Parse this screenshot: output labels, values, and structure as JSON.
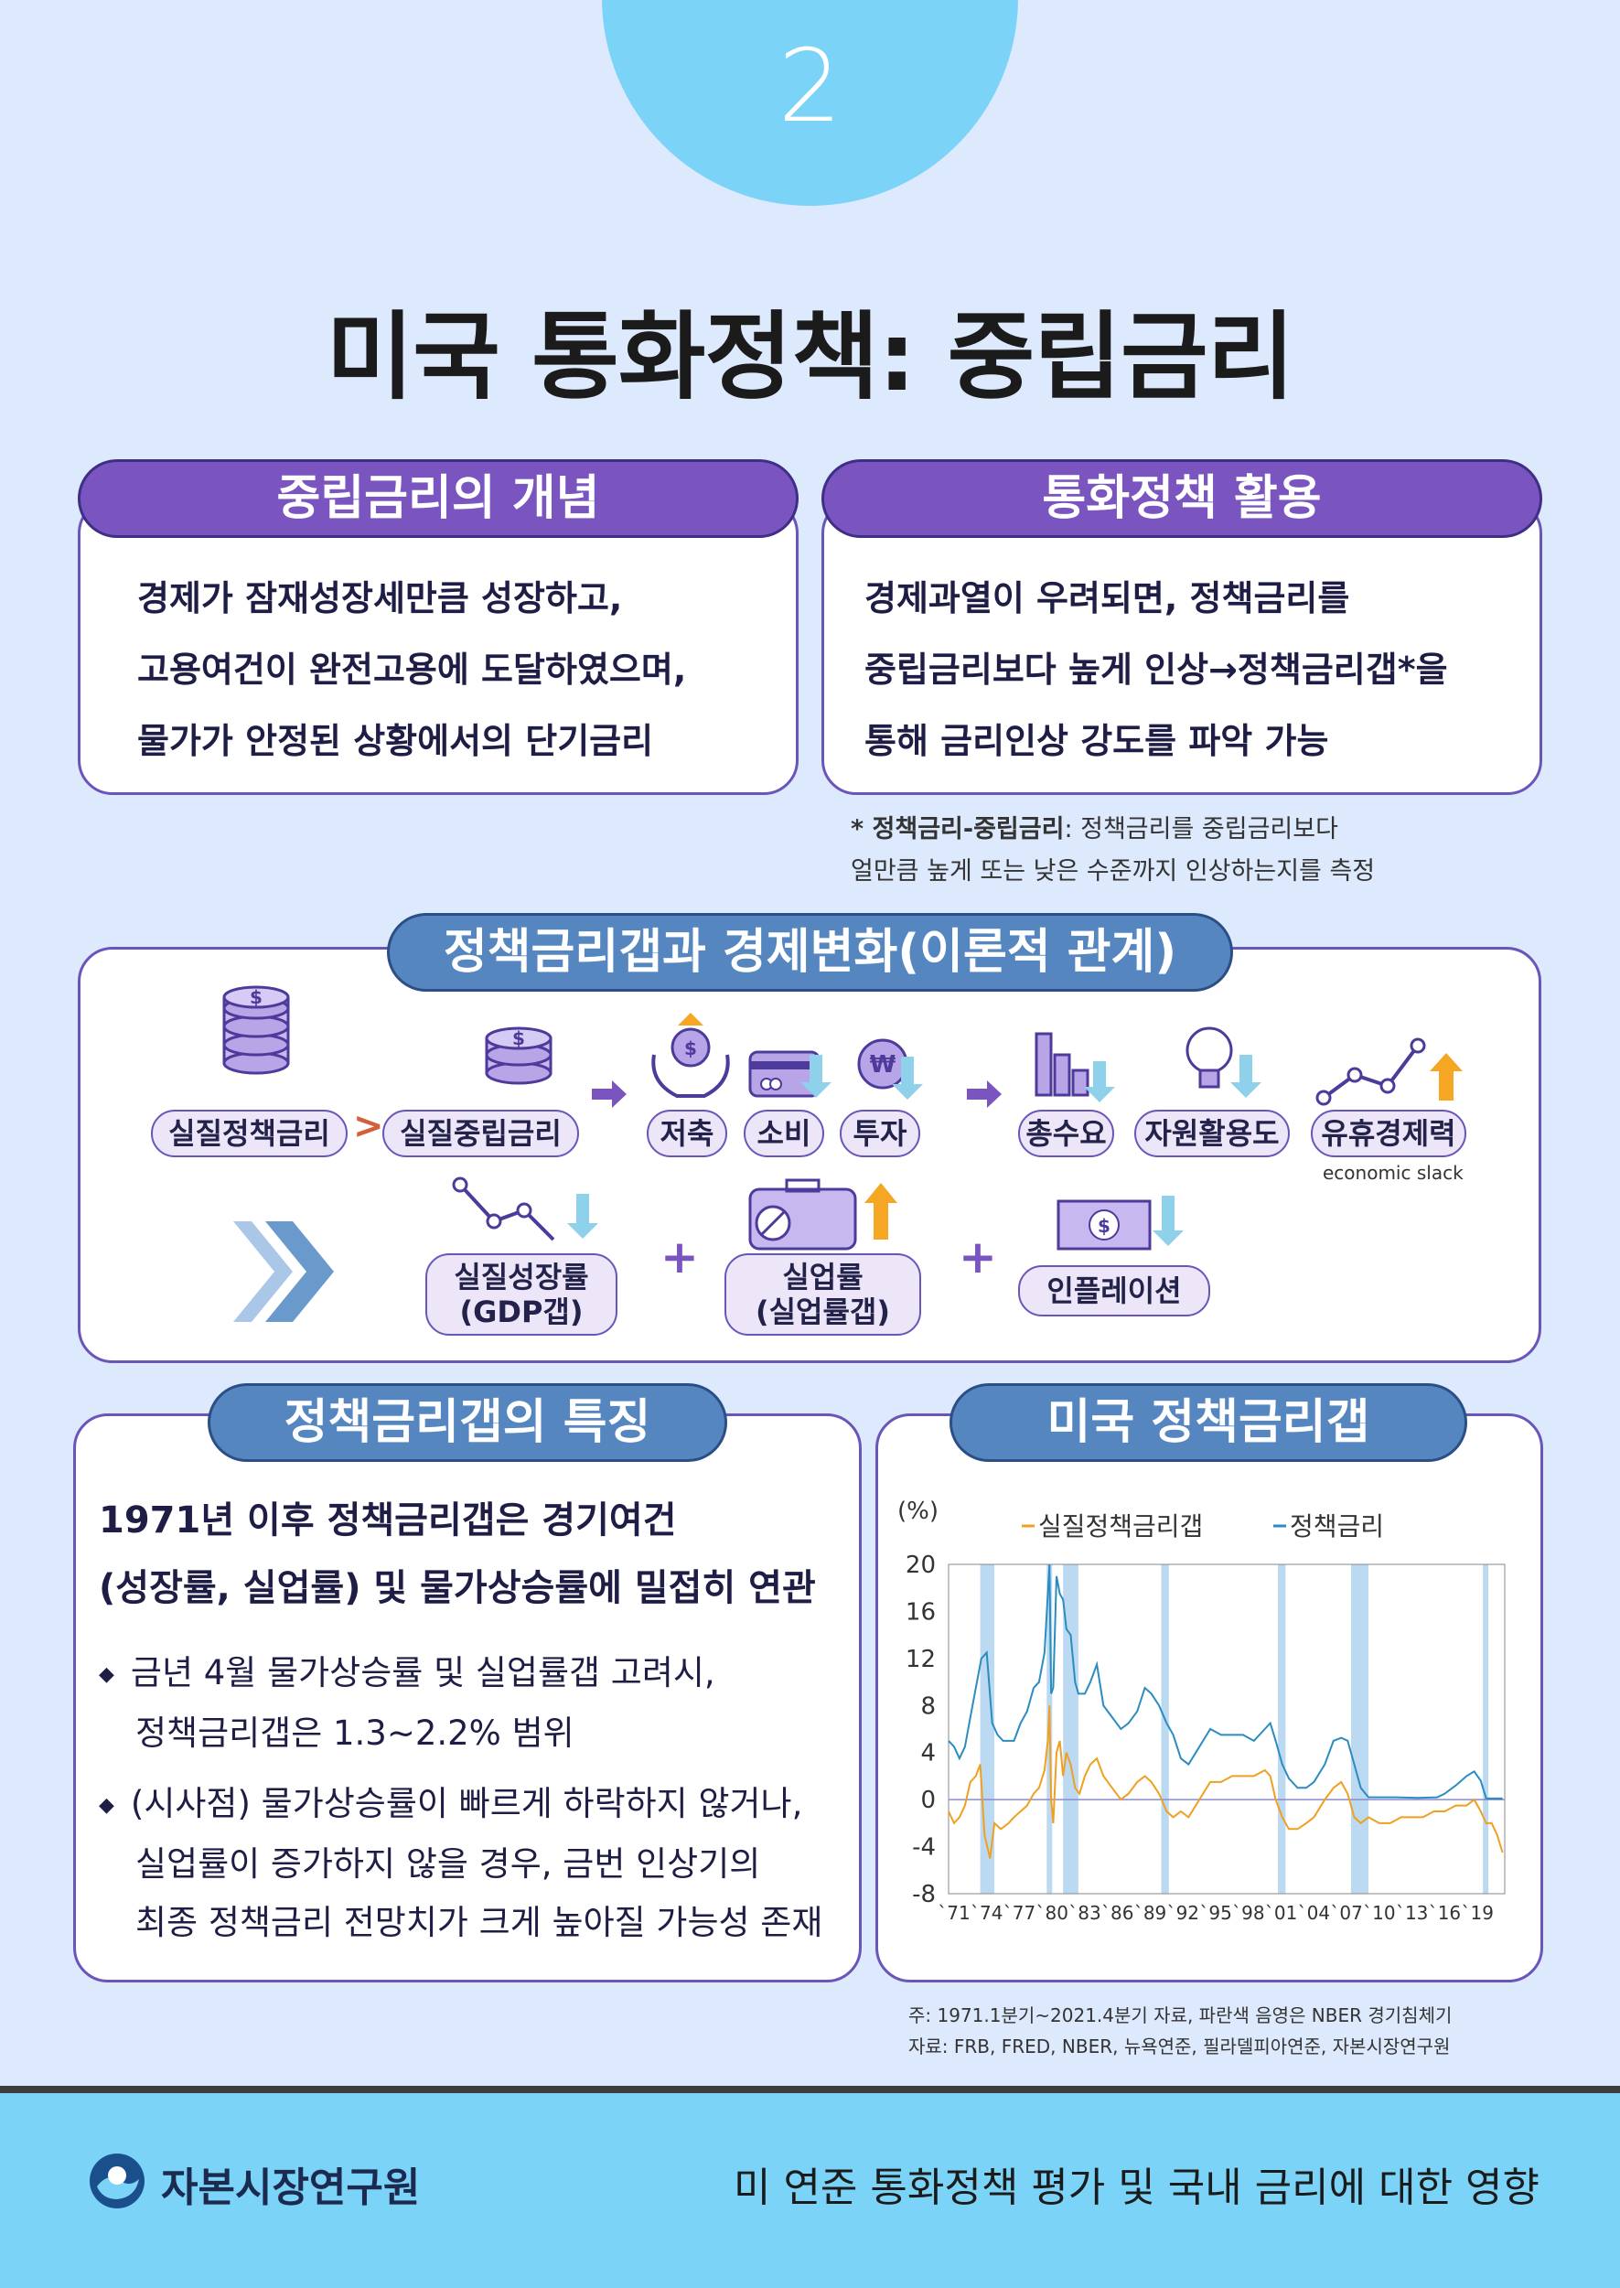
{
  "page_number": "2",
  "title": "미국 통화정책: 중립금리",
  "concept": {
    "header": "중립금리의 개념",
    "lines": [
      "경제가 잠재성장세만큼 성장하고,",
      "고용여건이 완전고용에 도달하였으며,",
      "물가가 안정된 상황에서의 단기금리"
    ]
  },
  "usage": {
    "header": "통화정책 활용",
    "lines": [
      "경제과열이 우려되면, 정책금리를",
      "중립금리보다 높게 인상→정책금리갭*을",
      "통해 금리인상 강도를 파악 가능"
    ]
  },
  "footnote": {
    "bold": "* 정책금리-중립금리",
    "rest": ": 정책금리를 중립금리보다",
    "line2": "얼만큼 높게 또는 낮은 수준까지 인상하는지를 측정"
  },
  "theory": {
    "header": "정책금리갭과 경제변화(이론적 관계)",
    "real_policy_rate": "실질정책금리",
    "real_neutral_rate": "실질중립금리",
    "savings": "저축",
    "consumption": "소비",
    "investment": "투자",
    "aggregate_demand": "총수요",
    "resource_utilization": "자원활용도",
    "economic_slack": "유휴경제력",
    "economic_slack_en": "economic slack",
    "growth_line1": "실질성장률",
    "growth_line2": "(GDP갭)",
    "unemp_line1": "실업률",
    "unemp_line2": "(실업률갭)",
    "inflation": "인플레이션",
    "gt": ">",
    "arrow": "➜",
    "plus": "+",
    "dollar": "$",
    "won": "₩"
  },
  "features": {
    "header": "정책금리갭의 특징",
    "lead1": "1971년 이후 정책금리갭은 경기여건",
    "lead2": "(성장률, 실업률) 및 물가상승률에 밀접히 연관",
    "bullet1_line1": "금년 4월 물가상승률 및 실업률갭 고려시,",
    "bullet1_line2": "정책금리갭은 1.3~2.2% 범위",
    "bullet2_line1": "(시사점) 물가상승률이 빠르게 하락하지 않거나,",
    "bullet2_line2": "실업률이 증가하지 않을 경우, 금번 인상기의",
    "bullet2_line3": "최종 정책금리 전망치가 크게 높아질 가능성 존재",
    "bullet_glyph": "◆"
  },
  "chart_section": {
    "header": "미국 정책금리갭",
    "note": "주: 1971.1분기~2021.4분기 자료, 파란색 음영은 NBER 경기침체기",
    "source": "자료: FRB, FRED, NBER, 뉴욕연준, 필라델피아연준, 자본시장연구원"
  },
  "chart_data": {
    "type": "line",
    "ylabel": "(%)",
    "ylim": [
      -8,
      20
    ],
    "yticks": [
      20,
      16,
      12,
      8,
      4,
      0,
      -4,
      -8
    ],
    "xlim": [
      1971.0,
      2022.0
    ],
    "xticks": [
      "`71",
      "`74",
      "`77",
      "`80",
      "`83",
      "`86",
      "`89",
      "`92",
      "`95",
      "`98",
      "`01",
      "`04",
      "`07",
      "`10",
      "`13",
      "`16",
      "`19"
    ],
    "legend_position": "top",
    "recessions": [
      [
        1973.9,
        1975.2
      ],
      [
        1980.0,
        1980.5
      ],
      [
        1981.5,
        1982.9
      ],
      [
        1990.5,
        1991.2
      ],
      [
        2001.2,
        2001.9
      ],
      [
        2007.9,
        2009.5
      ],
      [
        2020.0,
        2020.5
      ]
    ],
    "series": [
      {
        "name": "실질정책금리갭",
        "color": "#f0a020",
        "x": [
          1971.0,
          1971.5,
          1972.0,
          1972.5,
          1973.0,
          1973.5,
          1973.9,
          1974.3,
          1974.8,
          1975.2,
          1975.8,
          1976.5,
          1977.0,
          1977.6,
          1978.2,
          1978.8,
          1979.3,
          1979.8,
          1980.1,
          1980.25,
          1980.4,
          1980.6,
          1980.9,
          1981.2,
          1981.5,
          1981.8,
          1982.2,
          1982.6,
          1983.0,
          1983.5,
          1984.0,
          1984.6,
          1985.2,
          1986.0,
          1986.8,
          1987.5,
          1988.3,
          1989.0,
          1989.6,
          1990.3,
          1991.0,
          1991.6,
          1992.3,
          1993.0,
          1994.0,
          1995.0,
          1996.0,
          1997.0,
          1998.0,
          1999.0,
          2000.0,
          2000.5,
          2001.0,
          2001.6,
          2002.2,
          2003.0,
          2003.8,
          2004.5,
          2005.5,
          2006.3,
          2007.0,
          2007.6,
          2008.2,
          2008.8,
          2009.5,
          2010.5,
          2011.5,
          2012.5,
          2013.5,
          2014.5,
          2015.5,
          2016.5,
          2017.5,
          2018.5,
          2019.2,
          2019.8,
          2020.3,
          2020.8,
          2021.3,
          2021.8
        ],
        "y": [
          -1.0,
          -2.0,
          -1.5,
          -0.5,
          1.5,
          2.0,
          3.0,
          -3.0,
          -5.0,
          -2.0,
          -2.5,
          -2.0,
          -1.5,
          -1.0,
          -0.5,
          0.5,
          1.0,
          2.5,
          5.0,
          8.0,
          0.0,
          -2.0,
          4.0,
          5.0,
          2.0,
          4.0,
          3.0,
          1.0,
          0.5,
          2.0,
          3.0,
          3.5,
          2.0,
          1.0,
          0.0,
          0.5,
          1.5,
          2.0,
          1.5,
          0.5,
          -1.0,
          -1.5,
          -1.0,
          -1.5,
          0.0,
          1.5,
          1.5,
          2.0,
          2.0,
          2.0,
          2.5,
          2.0,
          0.0,
          -1.5,
          -2.5,
          -2.5,
          -2.0,
          -1.5,
          0.0,
          1.0,
          1.5,
          0.5,
          -1.5,
          -2.0,
          -1.5,
          -2.0,
          -2.0,
          -1.5,
          -1.5,
          -1.5,
          -1.0,
          -1.0,
          -0.5,
          -0.5,
          0.0,
          -1.0,
          -2.0,
          -2.0,
          -3.0,
          -4.5
        ]
      },
      {
        "name": "정책금리",
        "color": "#2b8cc0",
        "x": [
          1971.0,
          1971.5,
          1972.0,
          1972.5,
          1973.0,
          1973.5,
          1974.0,
          1974.5,
          1975.0,
          1975.5,
          1976.0,
          1976.5,
          1977.0,
          1977.6,
          1978.2,
          1978.8,
          1979.3,
          1979.8,
          1980.1,
          1980.25,
          1980.4,
          1980.6,
          1980.9,
          1981.2,
          1981.5,
          1981.8,
          1982.2,
          1982.6,
          1982.9,
          1983.5,
          1984.0,
          1984.6,
          1985.2,
          1986.0,
          1986.8,
          1987.5,
          1988.3,
          1989.0,
          1989.6,
          1990.3,
          1991.0,
          1991.6,
          1992.3,
          1993.0,
          1994.0,
          1995.0,
          1996.0,
          1997.0,
          1998.0,
          1999.0,
          2000.0,
          2000.5,
          2001.0,
          2001.6,
          2002.2,
          2003.0,
          2003.8,
          2004.5,
          2005.5,
          2006.3,
          2007.0,
          2007.6,
          2008.2,
          2008.8,
          2009.5,
          2010.5,
          2012.0,
          2014.0,
          2015.8,
          2016.5,
          2017.5,
          2018.5,
          2019.2,
          2019.8,
          2020.3,
          2021.0,
          2021.8
        ],
        "y": [
          5.0,
          4.5,
          3.5,
          4.5,
          7.0,
          9.5,
          12.0,
          12.5,
          6.5,
          5.5,
          5.0,
          5.0,
          5.0,
          6.5,
          7.5,
          9.5,
          10.0,
          12.5,
          17.5,
          20.0,
          9.0,
          9.5,
          19.0,
          17.5,
          17.0,
          14.5,
          14.0,
          10.0,
          9.0,
          9.0,
          10.0,
          11.5,
          8.0,
          7.0,
          6.0,
          6.5,
          7.5,
          9.5,
          9.0,
          8.0,
          6.5,
          5.5,
          3.5,
          3.0,
          4.5,
          6.0,
          5.5,
          5.5,
          5.5,
          5.0,
          6.0,
          6.5,
          5.0,
          3.0,
          1.8,
          1.0,
          1.0,
          1.5,
          3.0,
          5.0,
          5.25,
          5.0,
          3.0,
          1.0,
          0.2,
          0.2,
          0.2,
          0.15,
          0.2,
          0.5,
          1.2,
          2.0,
          2.4,
          1.6,
          0.1,
          0.1,
          0.1
        ]
      }
    ]
  },
  "footer": {
    "org": "자본시장연구원",
    "report_title": "미 연준 통화정책 평가 및 국내 금리에 대한 영향"
  },
  "colors": {
    "background": "#dde9fc",
    "purple": "#7a55c0",
    "blue_header": "#5586c0",
    "footer": "#7bd3f7",
    "gap_line": "#f0a020",
    "rate_line": "#2b8cc0"
  }
}
